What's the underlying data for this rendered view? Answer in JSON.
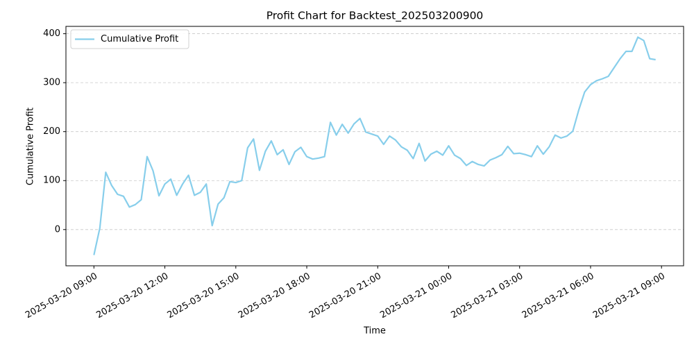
{
  "chart_data": {
    "type": "line",
    "title": "Profit Chart for Backtest_202503200900",
    "xlabel": "Time",
    "ylabel": "Cumulative Profit",
    "x": [
      "2025-03-20 09:00",
      "2025-03-20 09:15",
      "2025-03-20 09:30",
      "2025-03-20 09:45",
      "2025-03-20 10:00",
      "2025-03-20 10:15",
      "2025-03-20 10:30",
      "2025-03-20 10:45",
      "2025-03-20 11:00",
      "2025-03-20 11:15",
      "2025-03-20 11:30",
      "2025-03-20 11:45",
      "2025-03-20 12:00",
      "2025-03-20 12:15",
      "2025-03-20 12:30",
      "2025-03-20 12:45",
      "2025-03-20 13:00",
      "2025-03-20 13:15",
      "2025-03-20 13:30",
      "2025-03-20 13:45",
      "2025-03-20 14:00",
      "2025-03-20 14:15",
      "2025-03-20 14:30",
      "2025-03-20 14:45",
      "2025-03-20 15:00",
      "2025-03-20 15:15",
      "2025-03-20 15:30",
      "2025-03-20 15:45",
      "2025-03-20 16:00",
      "2025-03-20 16:15",
      "2025-03-20 16:30",
      "2025-03-20 16:45",
      "2025-03-20 17:00",
      "2025-03-20 17:15",
      "2025-03-20 17:30",
      "2025-03-20 17:45",
      "2025-03-20 18:00",
      "2025-03-20 18:15",
      "2025-03-20 18:30",
      "2025-03-20 18:45",
      "2025-03-20 19:00",
      "2025-03-20 19:15",
      "2025-03-20 19:30",
      "2025-03-20 19:45",
      "2025-03-20 20:00",
      "2025-03-20 20:15",
      "2025-03-20 20:30",
      "2025-03-20 20:45",
      "2025-03-20 21:00",
      "2025-03-20 21:15",
      "2025-03-20 21:30",
      "2025-03-20 21:45",
      "2025-03-20 22:00",
      "2025-03-20 22:15",
      "2025-03-20 22:30",
      "2025-03-20 22:45",
      "2025-03-20 23:00",
      "2025-03-20 23:15",
      "2025-03-20 23:30",
      "2025-03-20 23:45",
      "2025-03-21 00:00",
      "2025-03-21 00:15",
      "2025-03-21 00:30",
      "2025-03-21 00:45",
      "2025-03-21 01:00",
      "2025-03-21 01:15",
      "2025-03-21 01:30",
      "2025-03-21 01:45",
      "2025-03-21 02:00",
      "2025-03-21 02:15",
      "2025-03-21 02:30",
      "2025-03-21 02:45",
      "2025-03-21 03:00",
      "2025-03-21 03:15",
      "2025-03-21 03:30",
      "2025-03-21 03:45",
      "2025-03-21 04:00",
      "2025-03-21 04:15",
      "2025-03-21 04:30",
      "2025-03-21 04:45",
      "2025-03-21 05:00",
      "2025-03-21 05:15",
      "2025-03-21 05:30",
      "2025-03-21 05:45",
      "2025-03-21 06:00",
      "2025-03-21 06:15",
      "2025-03-21 06:30",
      "2025-03-21 06:45",
      "2025-03-21 07:00",
      "2025-03-21 07:15",
      "2025-03-21 07:30",
      "2025-03-21 07:45",
      "2025-03-21 08:00",
      "2025-03-21 08:15",
      "2025-03-21 08:30",
      "2025-03-21 08:45"
    ],
    "series": [
      {
        "name": "Cumulative Profit",
        "color": "#87ceeb",
        "values": [
          -52,
          3,
          117,
          90,
          72,
          68,
          46,
          51,
          61,
          149,
          120,
          69,
          93,
          103,
          70,
          93,
          111,
          70,
          76,
          93,
          8,
          52,
          65,
          98,
          96,
          100,
          167,
          185,
          121,
          160,
          181,
          153,
          163,
          133,
          159,
          168,
          149,
          144,
          146,
          149,
          219,
          193,
          215,
          197,
          216,
          227,
          199,
          195,
          191,
          174,
          191,
          183,
          169,
          162,
          145,
          176,
          140,
          154,
          160,
          152,
          171,
          152,
          145,
          131,
          139,
          133,
          130,
          142,
          147,
          153,
          170,
          155,
          156,
          153,
          149,
          171,
          154,
          169,
          193,
          187,
          191,
          201,
          244,
          281,
          296,
          304,
          308,
          313,
          331,
          349,
          364,
          364,
          393,
          386,
          349,
          347
        ]
      }
    ],
    "xlim": [
      "2025-03-20 07:49",
      "2025-03-21 09:56"
    ],
    "xticks": [
      "2025-03-20 09:00",
      "2025-03-20 12:00",
      "2025-03-20 15:00",
      "2025-03-20 18:00",
      "2025-03-20 21:00",
      "2025-03-21 00:00",
      "2025-03-21 03:00",
      "2025-03-21 06:00",
      "2025-03-21 09:00"
    ],
    "ylim": [
      -74,
      415
    ],
    "yticks": [
      0,
      100,
      200,
      300,
      400
    ],
    "grid": true,
    "legend": "upper left"
  }
}
